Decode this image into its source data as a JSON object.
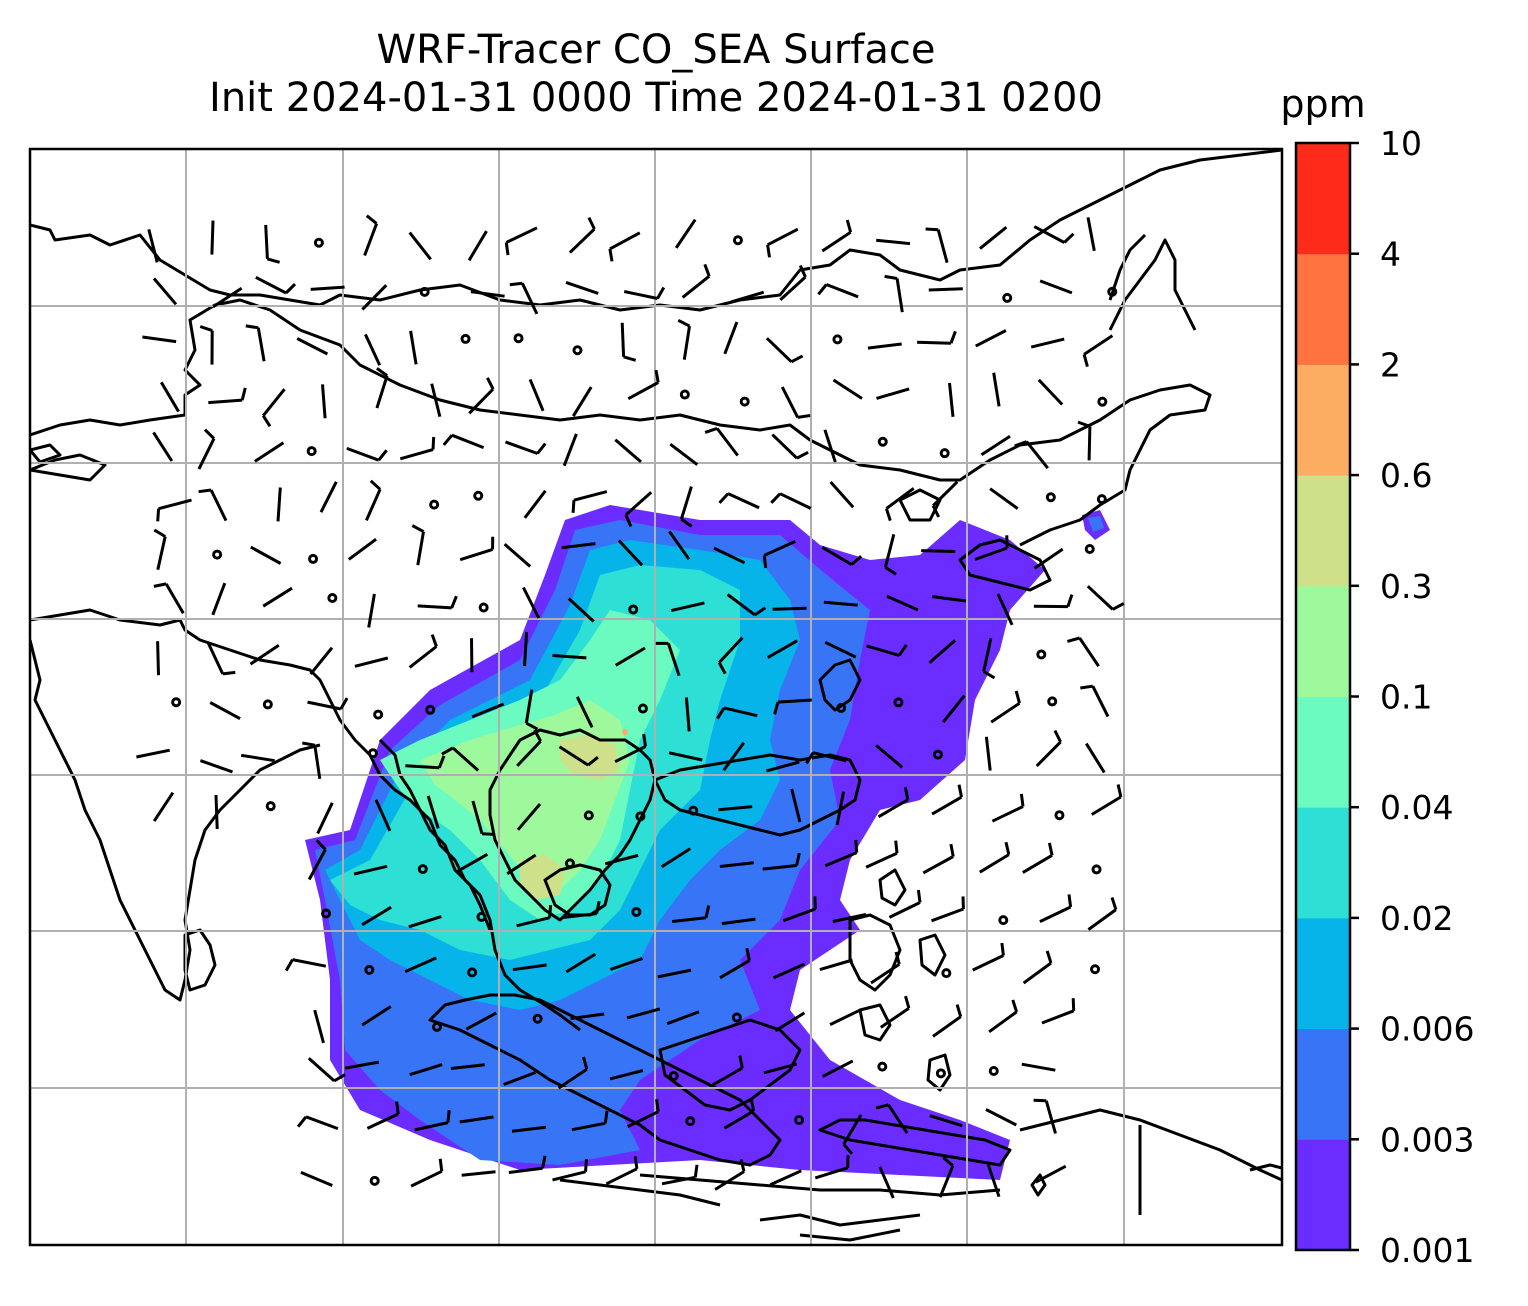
{
  "title": {
    "line1": "WRF-Tracer CO_SEA Surface",
    "line2": "Init 2024-01-31 0000 Time 2024-01-31 0200"
  },
  "colorbar": {
    "unit": "ppm",
    "levels": [
      "0.001",
      "0.003",
      "0.006",
      "0.02",
      "0.04",
      "0.1",
      "0.3",
      "0.6",
      "2",
      "4",
      "10"
    ],
    "colors": [
      "#6a2cff",
      "#3874f6",
      "#06b4ea",
      "#2edfd5",
      "#6bfac0",
      "#9ef99c",
      "#cfe08a",
      "#fcad62",
      "#ff7340",
      "#ff2b1a"
    ]
  },
  "map": {
    "gridlines": true,
    "field": "CO_SEA surface tracer concentration",
    "overlay": "wind barbs and calm circles"
  }
}
